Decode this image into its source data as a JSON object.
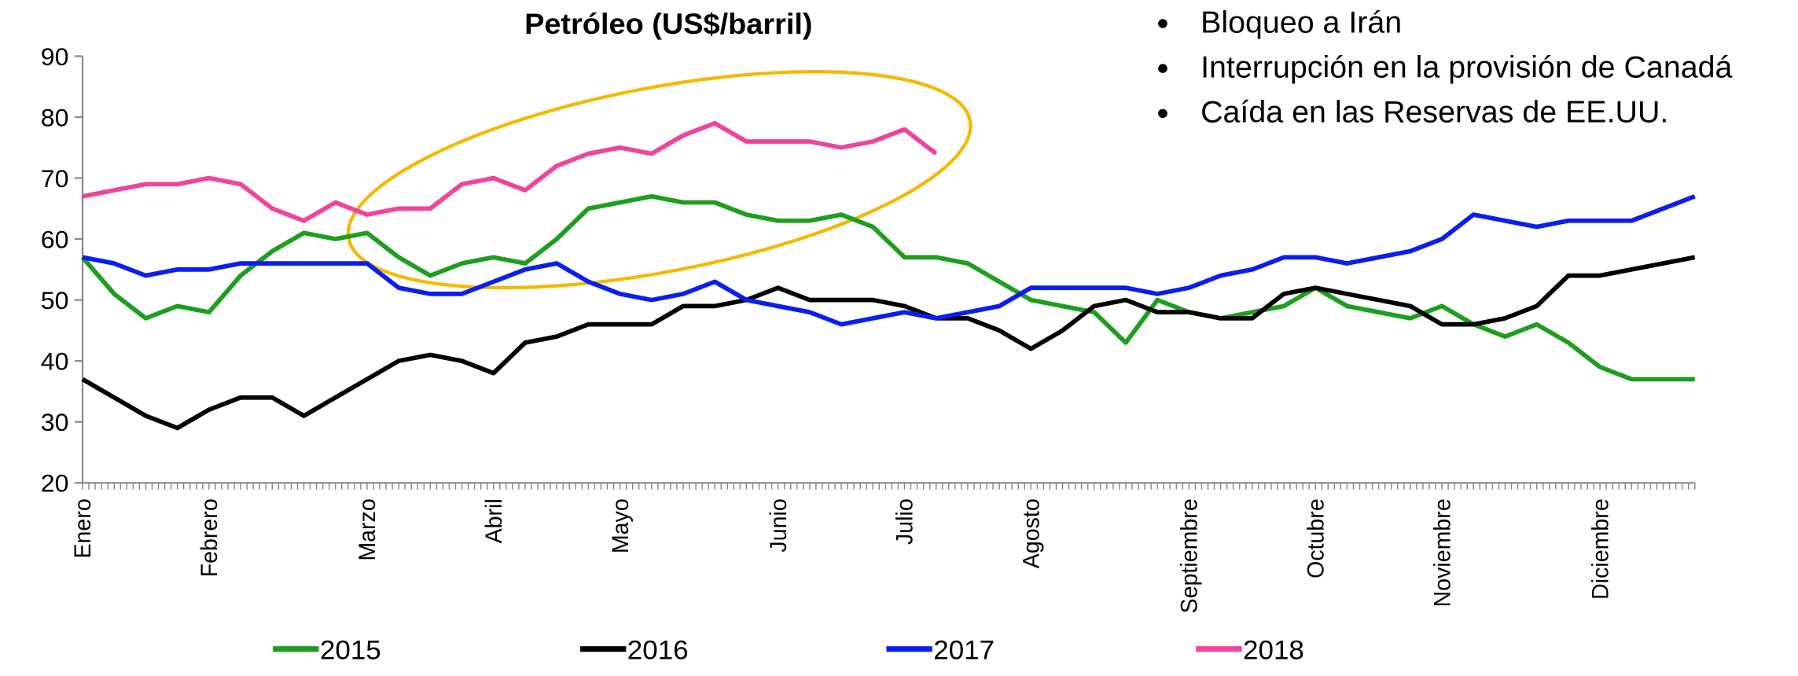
{
  "chart_data": {
    "type": "line",
    "title": "Petróleo (US$/barril)",
    "categories": [
      "Enero",
      null,
      null,
      null,
      "Febrero",
      null,
      null,
      null,
      null,
      "Marzo",
      null,
      null,
      null,
      "Abril",
      null,
      null,
      null,
      "Mayo",
      null,
      null,
      null,
      null,
      "Junio",
      null,
      null,
      null,
      "Julio",
      null,
      null,
      null,
      "Agosto",
      null,
      null,
      null,
      null,
      "Septiembre",
      null,
      null,
      null,
      "Octubre",
      null,
      null,
      null,
      "Noviembre",
      null,
      null,
      null,
      null,
      "Diciembre",
      null,
      null,
      null
    ],
    "series": [
      {
        "name": "2015",
        "color": "#1e9e1e",
        "values": [
          57,
          51,
          47,
          49,
          48,
          54,
          58,
          61,
          60,
          61,
          57,
          54,
          56,
          57,
          56,
          60,
          65,
          66,
          67,
          66,
          66,
          64,
          63,
          63,
          64,
          62,
          57,
          57,
          56,
          53,
          50,
          49,
          48,
          43,
          50,
          48,
          47,
          48,
          49,
          52,
          49,
          48,
          47,
          49,
          46,
          44,
          46,
          43,
          39,
          37,
          37,
          37
        ]
      },
      {
        "name": "2016",
        "color": "#000000",
        "values": [
          37,
          34,
          31,
          29,
          32,
          34,
          34,
          31,
          34,
          37,
          40,
          41,
          40,
          38,
          43,
          44,
          46,
          46,
          46,
          49,
          49,
          50,
          52,
          50,
          50,
          50,
          49,
          47,
          47,
          45,
          42,
          45,
          49,
          50,
          48,
          48,
          47,
          47,
          51,
          52,
          51,
          50,
          49,
          46,
          46,
          47,
          49,
          54,
          54,
          55,
          56,
          57
        ]
      },
      {
        "name": "2017",
        "color": "#0a1ef0",
        "values": [
          57,
          56,
          54,
          55,
          55,
          56,
          56,
          56,
          56,
          56,
          52,
          51,
          51,
          53,
          55,
          56,
          53,
          51,
          50,
          51,
          53,
          50,
          49,
          48,
          46,
          47,
          48,
          47,
          48,
          49,
          52,
          52,
          52,
          52,
          51,
          52,
          54,
          55,
          57,
          57,
          56,
          57,
          58,
          60,
          64,
          63,
          62,
          63,
          63,
          63,
          65,
          67
        ]
      },
      {
        "name": "2018",
        "color": "#f0449a",
        "values": [
          67,
          68,
          69,
          69,
          70,
          69,
          65,
          63,
          66,
          64,
          65,
          65,
          69,
          70,
          68,
          72,
          74,
          75,
          74,
          77,
          79,
          76,
          76,
          76,
          75,
          76,
          78,
          74,
          null,
          null,
          null,
          null,
          null,
          null,
          null,
          null,
          null,
          null,
          null,
          null,
          null,
          null,
          null,
          null,
          null,
          null,
          null,
          null,
          null,
          null,
          null,
          null
        ]
      }
    ],
    "ylim": [
      20,
      90
    ],
    "yticks": [
      20,
      30,
      40,
      50,
      60,
      70,
      80,
      90
    ],
    "annotations": [
      "Bloqueo a Irán",
      "Interrupción en la provisión de Canadá",
      "Caída en las Reservas de EE.UU."
    ]
  }
}
